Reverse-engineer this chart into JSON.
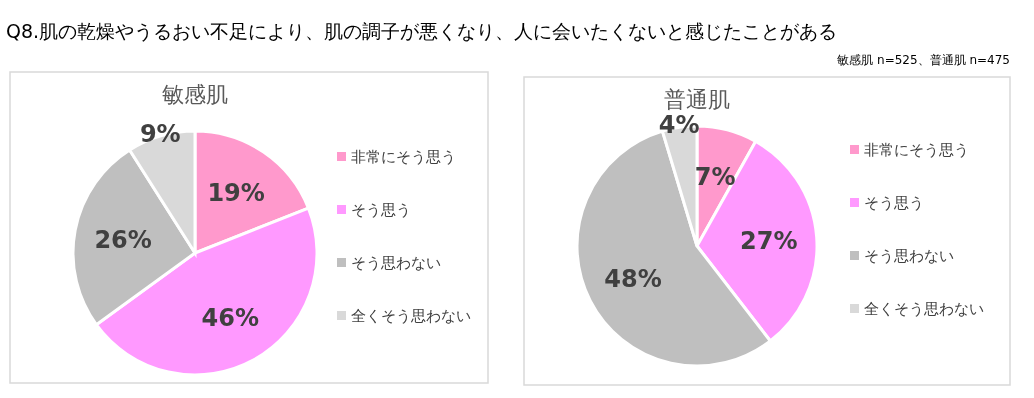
{
  "chart_data": [
    {
      "type": "pie",
      "title": "敏感肌",
      "categories": [
        "非常にそう思う",
        "そう思う",
        "そう思わない",
        "全くそう思わない"
      ],
      "values": [
        19,
        46,
        26,
        9
      ],
      "value_labels": [
        "19%",
        "46%",
        "26%",
        "9%"
      ],
      "colors": [
        "#ff99cc",
        "#ff99ff",
        "#bfbfbf",
        "#d9d9d9"
      ],
      "data_labels": true,
      "legend": "right",
      "annotations": [
        "Q8.肌の乾燥やうるおい不足により、肌の調子が悪くなり、人に会いたくないと感じたことがある",
        "敏感肌 n=525、普通肌 n=475"
      ]
    },
    {
      "type": "pie",
      "title": "普通肌",
      "categories": [
        "非常にそう思う",
        "そう思う",
        "そう思わない",
        "全くそう思わない"
      ],
      "values": [
        7,
        27,
        48,
        4
      ],
      "value_labels": [
        "7%",
        "27%",
        "48%",
        "4%"
      ],
      "colors": [
        "#ff99cc",
        "#ff99ff",
        "#bfbfbf",
        "#d9d9d9"
      ],
      "data_labels": true,
      "legend": "right"
    }
  ]
}
